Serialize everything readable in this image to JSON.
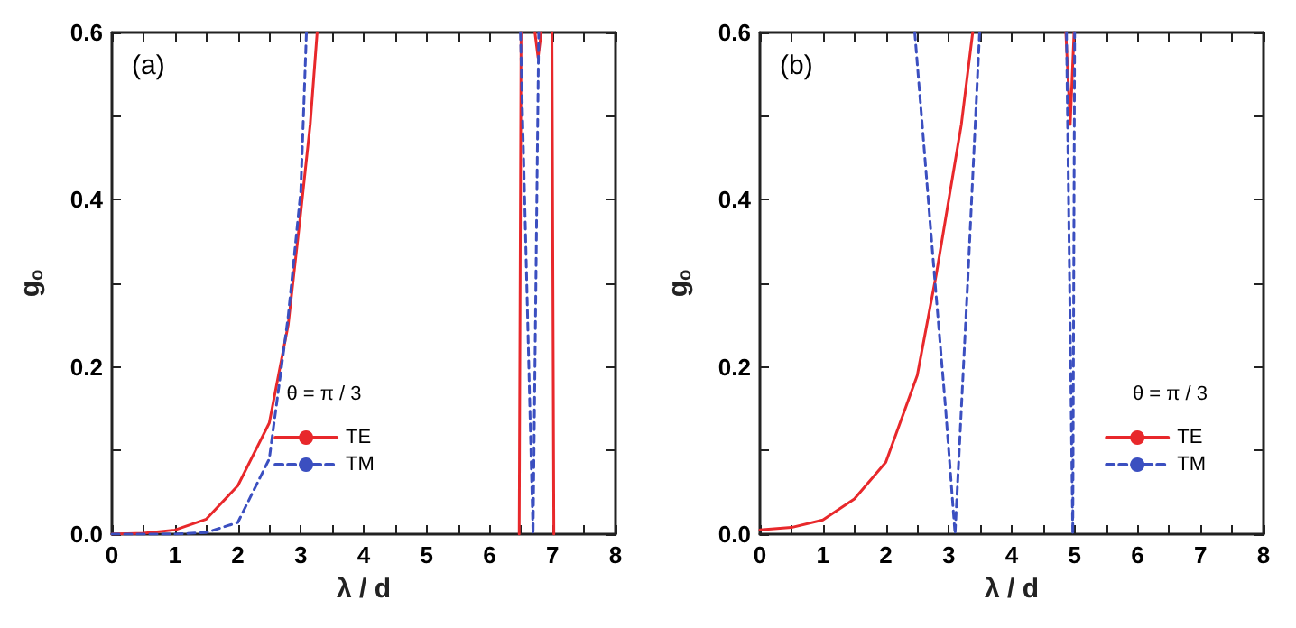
{
  "chart_data": [
    {
      "type": "line",
      "title": "(a)",
      "xlabel": "λ / d",
      "ylabel": "g$_{o}$",
      "legend_title": "θ = π / 3",
      "legend": "bottom",
      "grid": false,
      "marker": "none",
      "xlim": [
        0,
        8
      ],
      "ylim": [
        0,
        0.6
      ],
      "xticks": [
        0,
        {
          "value": 0.5,
          "label": null
        },
        1,
        {
          "value": 1.5,
          "label": null
        },
        2,
        {
          "value": 2.5,
          "label": null
        },
        3,
        {
          "value": 3.5,
          "label": null
        },
        4,
        {
          "value": 4.5,
          "label": null
        },
        5,
        {
          "value": 5.5,
          "label": null
        },
        6,
        {
          "value": 6.5,
          "label": null
        },
        7,
        {
          "value": 7.5,
          "label": null
        },
        8
      ],
      "yticks": [
        {
          "value": 0,
          "label": "0.0"
        },
        {
          "value": 0.1,
          "label": null
        },
        {
          "value": 0.2,
          "label": "0.2"
        },
        {
          "value": 0.3,
          "label": null
        },
        {
          "value": 0.4,
          "label": "0.4"
        },
        {
          "value": 0.5,
          "label": null
        },
        {
          "value": 0.6,
          "label": "0.6"
        }
      ],
      "series": [
        {
          "name": "TE",
          "color": "#e8282b",
          "line_style": "solid",
          "x": [
            0,
            0.5,
            1,
            1.5,
            2,
            2.5,
            2.8,
            3,
            3.15,
            3.26,
            4,
            6.47,
            6.5,
            6.6,
            6.72,
            6.77,
            6.82,
            6.9,
            6.99,
            7.02
          ],
          "values": [
            0,
            0.001,
            0.005,
            0.018,
            0.058,
            0.133,
            0.25,
            0.385,
            0.49,
            0.6,
            null,
            0,
            0.6,
            null,
            0.6,
            0.57,
            0.6,
            null,
            0.6,
            0
          ]
        },
        {
          "name": "TM",
          "color": "#3b4fc0",
          "line_style": "dashed",
          "x": [
            0,
            1,
            1.5,
            2,
            2.5,
            2.8,
            3,
            3.09,
            4,
            6.49,
            6.69,
            6.78
          ],
          "values": [
            0,
            0,
            0.002,
            0.014,
            0.09,
            0.26,
            0.41,
            0.6,
            null,
            0.6,
            0,
            0.6
          ]
        }
      ]
    },
    {
      "type": "line",
      "title": "(b)",
      "xlabel": "λ / d",
      "ylabel": "g$_{o}$",
      "legend_title": "θ = π / 3",
      "legend": "bottom right",
      "grid": false,
      "marker": "none",
      "xlim": [
        0,
        8
      ],
      "ylim": [
        0,
        0.6
      ],
      "xticks": [
        0,
        {
          "value": 0.5,
          "label": null
        },
        1,
        {
          "value": 1.5,
          "label": null
        },
        2,
        {
          "value": 2.5,
          "label": null
        },
        3,
        {
          "value": 3.5,
          "label": null
        },
        4,
        {
          "value": 4.5,
          "label": null
        },
        5,
        {
          "value": 5.5,
          "label": null
        },
        6,
        {
          "value": 6.5,
          "label": null
        },
        7,
        {
          "value": 7.5,
          "label": null
        },
        8
      ],
      "yticks": [
        {
          "value": 0,
          "label": "0.0"
        },
        {
          "value": 0.1,
          "label": null
        },
        {
          "value": 0.2,
          "label": "0.2"
        },
        {
          "value": 0.3,
          "label": null
        },
        {
          "value": 0.4,
          "label": "0.4"
        },
        {
          "value": 0.5,
          "label": null
        },
        {
          "value": 0.6,
          "label": "0.6"
        }
      ],
      "series": [
        {
          "name": "TE",
          "color": "#e8282b",
          "line_style": "solid",
          "x": [
            0,
            0.5,
            1,
            1.5,
            2,
            2.5,
            2.8,
            3,
            3.2,
            3.38,
            4,
            4.86,
            4.93,
            4.99
          ],
          "values": [
            0.005,
            0.008,
            0.017,
            0.042,
            0.086,
            0.19,
            0.31,
            0.4,
            0.49,
            0.6,
            null,
            0.6,
            0.49,
            0.6
          ]
        },
        {
          "name": "TM",
          "color": "#3b4fc0",
          "line_style": "dashed",
          "x": [
            2.46,
            2.75,
            2.95,
            3.1,
            3.3,
            3.49,
            4,
            4.87,
            4.97,
            5.0
          ],
          "values": [
            0.6,
            0.33,
            0.15,
            0,
            0.3,
            0.6,
            null,
            0.6,
            0,
            0.6
          ]
        }
      ]
    }
  ]
}
